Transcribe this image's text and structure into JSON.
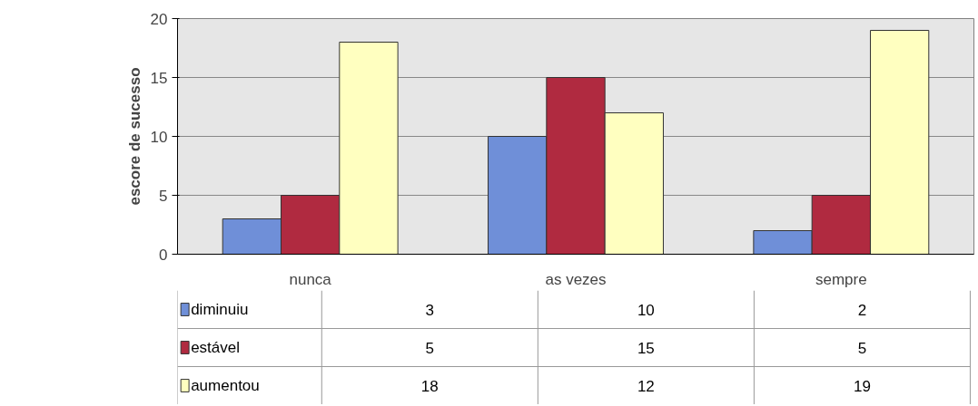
{
  "chart_data": {
    "type": "bar",
    "ylabel": "escore de sucesso",
    "categories": [
      "nunca",
      "as vezes",
      "sempre"
    ],
    "series": [
      {
        "name": "diminuiu",
        "color": "#6f8fd8",
        "values": [
          3,
          10,
          2
        ]
      },
      {
        "name": "estável",
        "color": "#b02a40",
        "values": [
          5,
          15,
          5
        ]
      },
      {
        "name": "aumentou",
        "color": "#ffffc0",
        "values": [
          18,
          12,
          19
        ]
      }
    ],
    "ylim": [
      0,
      20
    ],
    "yticks": [
      0,
      5,
      10,
      15,
      20
    ],
    "grid": "y",
    "legend": "bottom left",
    "data_labels": true
  }
}
